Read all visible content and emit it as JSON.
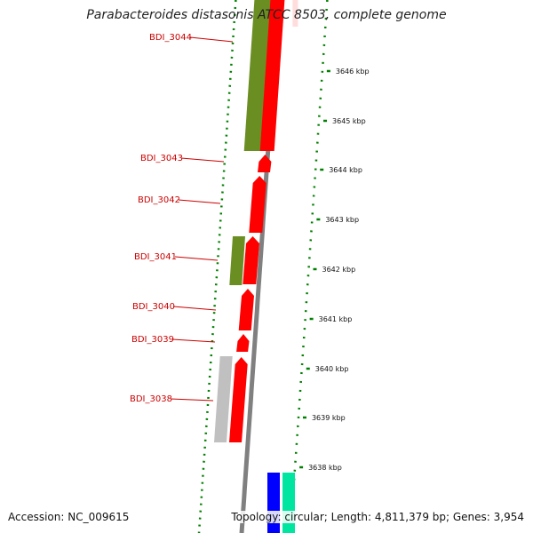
{
  "title": "Parabacteroides distasonis ATCC 8503, complete genome",
  "accession": "Accession: NC_009615",
  "summary": "Topology: circular; Length: 4,811,379 bp; Genes: 3,954",
  "colors": {
    "cds_red": "#ff0000",
    "olive": "#6b8e23",
    "gray_gene": "#c0c0c0",
    "backbone": "#808080",
    "blue": "#0000ff",
    "aqua": "#00e6a0",
    "dots": "#008000",
    "label_red": "#cc0000"
  },
  "genes": [
    {
      "name": "BDI_3044",
      "label": "BDI_3044"
    },
    {
      "name": "BDI_3043",
      "label": "BDI_3043"
    },
    {
      "name": "BDI_3042",
      "label": "BDI_3042"
    },
    {
      "name": "BDI_3041",
      "label": "BDI_3041"
    },
    {
      "name": "BDI_3040",
      "label": "BDI_3040"
    },
    {
      "name": "BDI_3039",
      "label": "BDI_3039"
    },
    {
      "name": "BDI_3038",
      "label": "BDI_3038"
    }
  ],
  "ticks": [
    {
      "label": "3646 kbp"
    },
    {
      "label": "3645 kbp"
    },
    {
      "label": "3644 kbp"
    },
    {
      "label": "3643 kbp"
    },
    {
      "label": "3642 kbp"
    },
    {
      "label": "3641 kbp"
    },
    {
      "label": "3640 kbp"
    },
    {
      "label": "3639 kbp"
    },
    {
      "label": "3638 kbp"
    }
  ]
}
